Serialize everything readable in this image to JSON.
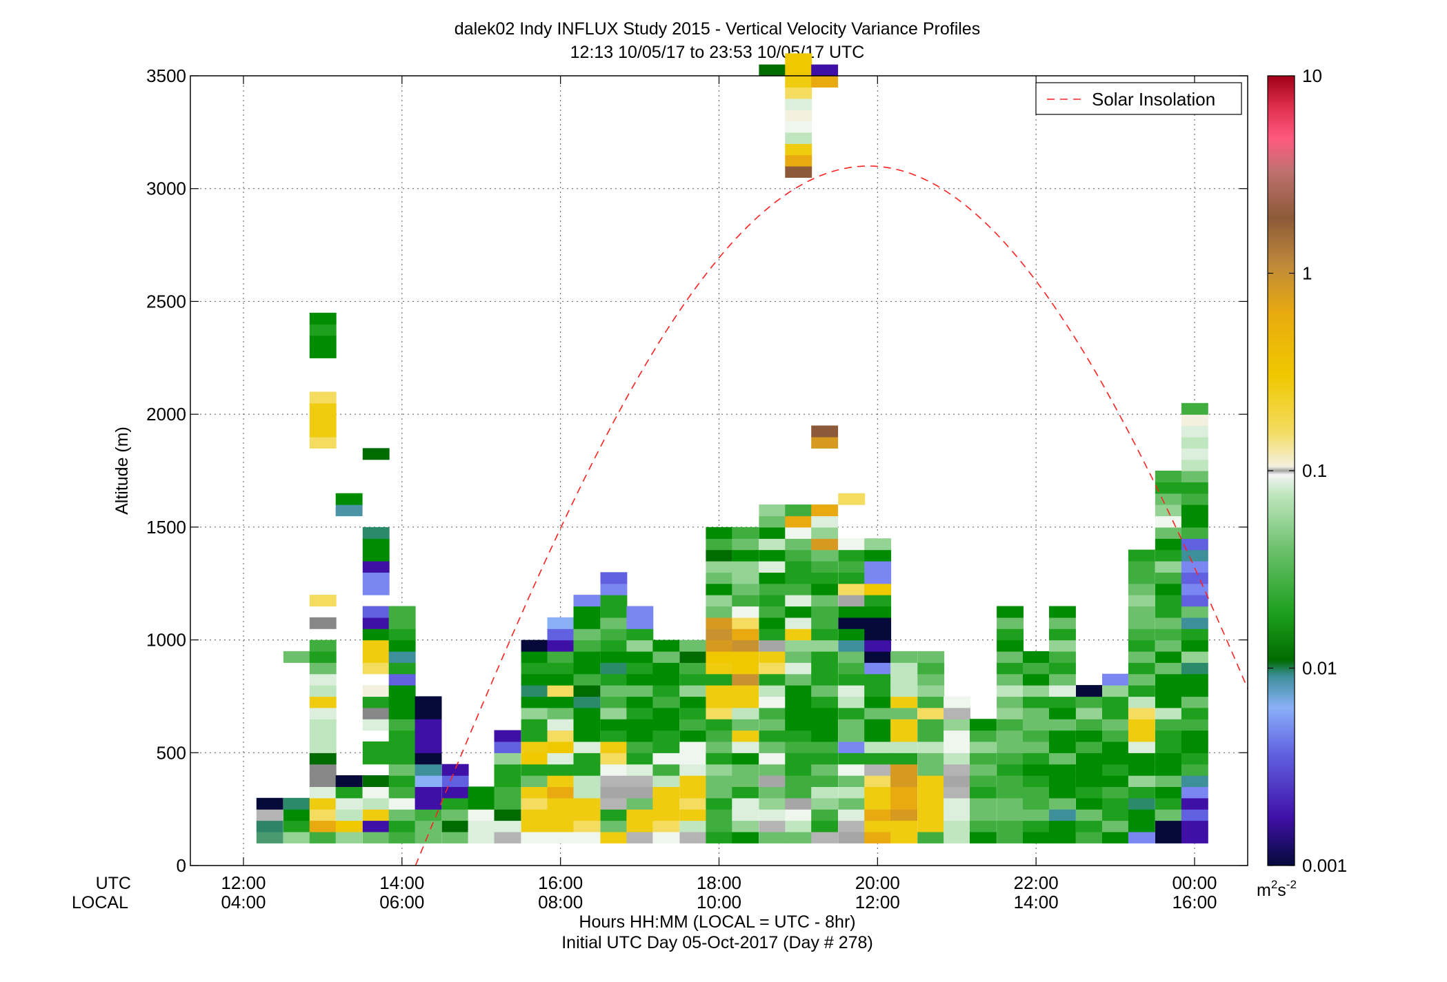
{
  "chart_data": {
    "type": "heatmap",
    "title": "dalek02 Indy INFLUX Study 2015 - Vertical Velocity Variance Profiles",
    "subtitle": "12:13 10/05/17 to 23:53 10/05/17  UTC",
    "ylabel": "Altitude (m)",
    "xlabel": "Hours HH:MM  (LOCAL = UTC - 8hr)",
    "xlabel2": "Initial UTC Day 05-Oct-2017 (Day # 278)",
    "axis_row_labels": [
      "UTC",
      "LOCAL"
    ],
    "x_ticks_utc": [
      "12:00",
      "14:00",
      "16:00",
      "18:00",
      "20:00",
      "22:00",
      "00:00"
    ],
    "x_ticks_local": [
      "04:00",
      "06:00",
      "08:00",
      "10:00",
      "12:00",
      "14:00",
      "16:00"
    ],
    "x_tick_hours": [
      12,
      14,
      16,
      18,
      20,
      22,
      24
    ],
    "xlim": [
      11.33,
      24.67
    ],
    "ylim": [
      0,
      3500
    ],
    "y_ticks": [
      0,
      500,
      1000,
      1500,
      2000,
      2500,
      3000,
      3500
    ],
    "grid": true,
    "legend": {
      "label": "Solar Insolation",
      "placement": "top-right",
      "color": "#ff2020",
      "style": "dashed"
    },
    "colorbar": {
      "scale": "log",
      "range": [
        0.001,
        10
      ],
      "ticks": [
        "10",
        "1",
        "0.1",
        "0.01",
        "0.001"
      ],
      "tick_values": [
        10,
        1,
        0.1,
        0.01,
        0.001
      ],
      "unit_base": "m",
      "unit_exp1": "2",
      "unit_mid": "s",
      "unit_exp2": "-2"
    },
    "solar_insolation_curve": {
      "sunrise_hour": 14.17,
      "sunset_hour": 25.6,
      "peak_hour": 19.88,
      "peak_altitude": 3100
    },
    "gate_bottom_m": 100,
    "gate_height_m": 50,
    "time_step_hours": 0.333,
    "profiles": [
      {
        "t": 12.33,
        "from": 1,
        "v": [
          "t5",
          "t4",
          "g1",
          "K"
        ]
      },
      {
        "t": 12.67,
        "from": 1,
        "v": [
          "G5",
          "G2",
          "G1",
          "T1"
        ]
      },
      {
        "t": 12.67,
        "from": 17,
        "v": [
          "G4"
        ]
      },
      {
        "t": 13.0,
        "from": 1,
        "v": [
          "G3",
          "a",
          "Y2",
          "Y1",
          "W2",
          "P",
          "P",
          "G6",
          "W1",
          "W1",
          "W1",
          "W2",
          "Y1",
          "W1",
          "W2",
          "G4",
          "G2",
          "G3",
          "_",
          "P",
          "_",
          "Y2",
          "_",
          "_",
          "_",
          "_",
          "_",
          "_",
          "_",
          "_",
          "_",
          "_",
          "_",
          "_",
          "_",
          "Y2",
          "Y1",
          "Y1",
          "Y1",
          "Y2",
          "_",
          "_",
          "_",
          "G1",
          "G1",
          "G2",
          "G1"
        ]
      },
      {
        "t": 13.33,
        "from": 1,
        "v": [
          "G5",
          "Y",
          "W1",
          "W2",
          "G2",
          "K"
        ]
      },
      {
        "t": 13.33,
        "from": 30,
        "v": [
          "T3",
          "G1"
        ]
      },
      {
        "t": 13.67,
        "from": 1,
        "v": [
          "G4",
          "U",
          "Y1",
          "W1",
          "W3",
          "G6",
          "_",
          "G2",
          "G2",
          "_",
          "W2",
          "P",
          "G2",
          "W4",
          "_",
          "Y2",
          "Y1",
          "Y1",
          "G1",
          "U",
          "B1",
          "_",
          "B2",
          "B2",
          "U",
          "G1",
          "G1",
          "T1"
        ]
      },
      {
        "t": 13.67,
        "from": 35,
        "v": [
          "G6"
        ]
      },
      {
        "t": 14.0,
        "from": 1,
        "v": [
          "G3",
          "G2",
          "G4",
          "W3",
          "G3",
          "G2",
          "G4",
          "G2",
          "G2",
          "G2",
          "G3",
          "G1",
          "G1",
          "G1",
          "B1",
          "G2",
          "T2",
          "G1",
          "G2",
          "G3",
          "G3"
        ]
      },
      {
        "t": 14.33,
        "from": 1,
        "v": [
          "G4",
          "G4",
          "G3",
          "U",
          "U",
          "B3",
          "T2",
          "K",
          "U",
          "U",
          "U",
          "K",
          "K"
        ]
      },
      {
        "t": 14.67,
        "from": 1,
        "v": [
          "G4",
          "G6",
          "G4",
          "G2",
          "U",
          "B1",
          "U"
        ]
      },
      {
        "t": 15.0,
        "from": 1,
        "v": [
          "W2",
          "W2",
          "W3",
          "G1",
          "G1"
        ]
      },
      {
        "t": 15.33,
        "from": 1,
        "v": [
          "g1",
          "W2",
          "G6",
          "G3",
          "G3",
          "G2",
          "G2",
          "G5",
          "B1",
          "U"
        ]
      },
      {
        "t": 15.67,
        "from": 1,
        "v": [
          "W3",
          "Y1",
          "Y1",
          "Y2",
          "Y1",
          "G4",
          "G2",
          "Y",
          "Y1",
          "G2",
          "G2",
          "G5",
          "G1",
          "T1",
          "G1",
          "G2",
          "G1",
          "K"
        ]
      },
      {
        "t": 16.0,
        "from": 1,
        "v": [
          "W3",
          "Y1",
          "Y1",
          "Y1",
          "a",
          "Y1",
          "G2",
          "W2",
          "Y",
          "Y2",
          "W2",
          "G4",
          "G1",
          "Y2",
          "G1",
          "G2",
          "G3",
          "U",
          "B1",
          "B3"
        ]
      },
      {
        "t": 16.33,
        "from": 1,
        "v": [
          "W3",
          "Y2",
          "Y1",
          "Y1",
          "W1",
          "W1",
          "G2",
          "G2",
          "W2",
          "G1",
          "G1",
          "G1",
          "T1",
          "G6",
          "G3",
          "G1",
          "G1",
          "G3",
          "G4",
          "G1",
          "G1",
          "B2"
        ]
      },
      {
        "t": 16.67,
        "from": 1,
        "v": [
          "Y1",
          "G4",
          "G2",
          "g1",
          "g2",
          "g1",
          "W3",
          "Y2",
          "Y1",
          "G2",
          "G1",
          "G5",
          "G3",
          "G4",
          "G2",
          "T1",
          "G1",
          "G2",
          "G3",
          "G4",
          "G2",
          "G2",
          "B2",
          "B1"
        ]
      },
      {
        "t": 17.0,
        "from": 1,
        "v": [
          "g1",
          "Y1",
          "Y1",
          "G4",
          "g2",
          "g1",
          "W2",
          "G2",
          "G3",
          "G1",
          "G1",
          "G2",
          "G1",
          "G4",
          "G1",
          "G2",
          "G1",
          "G5",
          "G2",
          "B2",
          "B2"
        ]
      },
      {
        "t": 17.33,
        "from": 1,
        "v": [
          "W3",
          "Y2",
          "Y1",
          "Y1",
          "Y1",
          "W1",
          "G3",
          "W3",
          "G2",
          "G2",
          "G1",
          "G1",
          "G3",
          "G2",
          "G1",
          "G1",
          "G4",
          "G1"
        ]
      },
      {
        "t": 17.67,
        "from": 1,
        "v": [
          "g1",
          "W1",
          "Y1",
          "Y2",
          "Y1",
          "Y1",
          "W2",
          "W3",
          "W3",
          "G1",
          "G3",
          "G2",
          "G1",
          "G5",
          "G2",
          "G3",
          "G6",
          "G4"
        ]
      },
      {
        "t": 18.0,
        "from": 1,
        "v": [
          "G2",
          "G3",
          "G3",
          "G2",
          "G4",
          "G4",
          "G5",
          "G2",
          "G4",
          "G3",
          "G2",
          "Y2",
          "Y1",
          "Y1",
          "G2",
          "Y1",
          "Y",
          "a2",
          "a3",
          "a2",
          "G4",
          "G5",
          "G1",
          "G4",
          "G5",
          "G6",
          "G3",
          "G1"
        ]
      },
      {
        "t": 18.33,
        "from": 1,
        "v": [
          "G1",
          "G5",
          "W2",
          "W2",
          "G2",
          "G4",
          "G4",
          "G1",
          "W2",
          "Y1",
          "G4",
          "W1",
          "Y1",
          "Y1",
          "a3",
          "Y",
          "Y",
          "a3",
          "a",
          "Y2",
          "W3",
          "G3",
          "G4",
          "G5",
          "G5",
          "G4"
        ]
      },
      {
        "t": 18.33,
        "from": 26,
        "v": [
          "G1",
          "G4",
          "G3"
        ]
      },
      {
        "t": 18.67,
        "from": 1,
        "v": [
          "G4",
          "g1",
          "W2",
          "G5",
          "G4",
          "g2",
          "G4",
          "W3",
          "G4",
          "G2",
          "G4",
          "G3",
          "W3",
          "W1",
          "G2",
          "Y2",
          "Y1",
          "g2",
          "G2",
          "G1",
          "G3",
          "G2",
          "G3",
          "G1",
          "W2",
          "G1",
          "W1",
          "G1",
          "G4",
          "G5",
          "_",
          "_",
          "_",
          "_",
          "_",
          "_",
          "_",
          "_",
          "_",
          "_",
          "_",
          "_",
          "_",
          "_",
          "_",
          "_",
          "_",
          "_",
          "_",
          "_",
          "_",
          "_",
          "_",
          "_",
          "_",
          "_",
          "_",
          "_",
          "_",
          "_",
          "_",
          "_",
          "_",
          "_",
          "_",
          "_",
          "_",
          "_",
          "G6"
        ]
      },
      {
        "t": 19.0,
        "from": 1,
        "v": [
          "G4",
          "W1",
          "W3",
          "g2",
          "G3",
          "G3",
          "G2",
          "G2",
          "G3",
          "G2",
          "G1",
          "G1",
          "G1",
          "G1",
          "G4",
          "W2",
          "G4",
          "G5",
          "Y1",
          "W2",
          "G1",
          "W2",
          "G3",
          "G2",
          "G2",
          "G3",
          "G4",
          "W3",
          "a",
          "G3",
          "_",
          "_",
          "_",
          "_",
          "_",
          "_",
          "_",
          "_",
          "_",
          "_",
          "_",
          "_",
          "_",
          "_",
          "_",
          "_",
          "_",
          "_",
          "_",
          "_",
          "_",
          "_",
          "_",
          "_",
          "_",
          "_",
          "_",
          "_",
          "_",
          "br",
          "a",
          "Y1",
          "W1",
          "W3",
          "W4",
          "W2",
          "Y2",
          "Y1",
          "Y",
          "Y"
        ]
      },
      {
        "t": 19.33,
        "from": 1,
        "v": [
          "g1",
          "G2",
          "G3",
          "G5",
          "W1",
          "G3",
          "G4",
          "G2",
          "G3",
          "G1",
          "G1",
          "G1",
          "G2",
          "G4",
          "G2",
          "G2",
          "G2",
          "G5",
          "G2",
          "G3",
          "G3",
          "G4",
          "G1",
          "G2",
          "G3",
          "G4",
          "a2",
          "G5",
          "W2",
          "a",
          "_",
          "_",
          "_",
          "_",
          "_",
          "a2",
          "br",
          "_",
          "_",
          "_",
          "_",
          "_",
          "_",
          "_",
          "_",
          "_",
          "_",
          "_",
          "_",
          "_",
          "_",
          "_",
          "_",
          "_",
          "_",
          "_",
          "_",
          "_",
          "_",
          "_",
          "_",
          "_",
          "_",
          "_",
          "_",
          "_",
          "_",
          "a",
          "U"
        ]
      },
      {
        "t": 19.67,
        "from": 1,
        "v": [
          "g2",
          "g1",
          "W2",
          "G4",
          "W1",
          "G4",
          "W3",
          "G2",
          "B2",
          "G4",
          "G4",
          "G2",
          "W1",
          "W2",
          "G2",
          "G3",
          "G4",
          "T2",
          "G1",
          "K",
          "G1",
          "g2",
          "Y2",
          "G2",
          "G3",
          "G2",
          "W3",
          "_",
          "_",
          "_",
          "Y2"
        ]
      },
      {
        "t": 20.0,
        "from": 1,
        "v": [
          "a",
          "Y1",
          "a",
          "Y1",
          "Y1",
          "Y2",
          "g1",
          "G2",
          "W1",
          "G1",
          "G1",
          "G4",
          "G1",
          "G2",
          "G2",
          "B2",
          "K",
          "U",
          "K",
          "K",
          "G1",
          "G2",
          "Y",
          "B2",
          "B2",
          "G1",
          "G5"
        ]
      },
      {
        "t": 20.33,
        "from": 1,
        "v": [
          "Y1",
          "Y1",
          "a2",
          "a",
          "a",
          "a2",
          "a2",
          "G2",
          "W1",
          "Y1",
          "Y1",
          "G4",
          "Y1",
          "W1",
          "W1",
          "W1",
          "G4"
        ]
      },
      {
        "t": 20.67,
        "from": 1,
        "v": [
          "G3",
          "Y1",
          "Y1",
          "Y1",
          "Y1",
          "Y1",
          "G4",
          "G4",
          "W1",
          "G3",
          "G3",
          "Y2",
          "G3",
          "G5",
          "G4",
          "G3",
          "G4"
        ]
      },
      {
        "t": 21.0,
        "from": 1,
        "v": [
          "W1",
          "W1",
          "W2",
          "W2",
          "g1",
          "g2",
          "g1",
          "W1",
          "W3",
          "W3",
          "G5",
          "g1",
          "W3"
        ]
      },
      {
        "t": 21.33,
        "from": 1,
        "v": [
          "G1",
          "G3",
          "G4",
          "G4",
          "G2",
          "G3",
          "G4",
          "G3",
          "G5",
          "G3",
          "G1"
        ]
      },
      {
        "t": 21.67,
        "from": 1,
        "v": [
          "G3",
          "G3",
          "G4",
          "G4",
          "G3",
          "G3",
          "G2",
          "G3",
          "G4",
          "G4",
          "G3",
          "G5",
          "G4",
          "W1",
          "G4",
          "G2",
          "G4",
          "G1",
          "G2",
          "G4",
          "G1"
        ]
      },
      {
        "t": 22.0,
        "from": 1,
        "v": [
          "G1",
          "G2",
          "G4",
          "G3",
          "G3",
          "G2",
          "G1",
          "G2",
          "G4",
          "G3",
          "G4",
          "G4",
          "G2",
          "G5",
          "G1",
          "G3",
          "G1"
        ]
      },
      {
        "t": 22.33,
        "from": 1,
        "v": [
          "G1",
          "G1",
          "T2",
          "G4",
          "G1",
          "G1",
          "G1",
          "G4",
          "G1",
          "G1",
          "G4",
          "G1",
          "G2",
          "W2",
          "G4",
          "G2",
          "G3",
          "G5",
          "G2",
          "G4",
          "G1"
        ]
      },
      {
        "t": 22.67,
        "from": 1,
        "v": [
          "G3",
          "G2",
          "G4",
          "G1",
          "G2",
          "G1",
          "G1",
          "G1",
          "G3",
          "G1",
          "G3",
          "G5",
          "G3",
          "K"
        ]
      },
      {
        "t": 23.0,
        "from": 1,
        "v": [
          "G1",
          "G4",
          "G2",
          "G2",
          "G3",
          "G1",
          "G2",
          "G1",
          "G1",
          "G3",
          "G4",
          "G2",
          "G2",
          "G5",
          "B2"
        ]
      },
      {
        "t": 23.33,
        "from": 1,
        "v": [
          "B2",
          "G1",
          "G1",
          "T1",
          "G2",
          "G5",
          "G1",
          "G1",
          "W2",
          "Y1",
          "Y1",
          "Y2",
          "W1",
          "G2",
          "G4",
          "G2",
          "G4",
          "G2",
          "G3",
          "G4",
          "G4",
          "G5",
          "G4",
          "G3",
          "G3",
          "G2"
        ]
      },
      {
        "t": 23.67,
        "from": 1,
        "v": [
          "K",
          "K",
          "G4",
          "G2",
          "G1",
          "G4",
          "G1",
          "G1",
          "G2",
          "G2",
          "G3",
          "W1",
          "G1",
          "G1",
          "G1",
          "G4",
          "G1",
          "G4",
          "G3",
          "G4",
          "G2",
          "G2",
          "G1",
          "G3",
          "G5",
          "G2",
          "G1",
          "G4",
          "W3",
          "G5",
          "G4",
          "G2",
          "G3"
        ]
      },
      {
        "t": 24.0,
        "from": 1,
        "v": [
          "U",
          "U",
          "B1",
          "U",
          "B2",
          "T2",
          "G3",
          "G2",
          "G1",
          "G1",
          "G3",
          "G2",
          "G4",
          "G1",
          "G1",
          "T1",
          "G5",
          "G1",
          "G2",
          "T2",
          "G4",
          "B1",
          "B2",
          "B1",
          "B2",
          "T2",
          "B1",
          "G3",
          "G1",
          "G1",
          "G3",
          "G2",
          "G4",
          "W1",
          "W2",
          "W1",
          "W2",
          "W4",
          "G3"
        ]
      }
    ],
    "colors": {
      "K": "#050a3a",
      "U": "#3f10a6",
      "B1": "#6060e0",
      "B2": "#7a86f2",
      "B3": "#8ab0f8",
      "T1": "#2b8a6a",
      "T2": "#3d8f9a",
      "T3": "#4a94a6",
      "t4": "#2f8467",
      "t5": "#4a9a70",
      "G6": "#006b00",
      "G1": "#008c00",
      "G2": "#1ea01e",
      "G3": "#3fae3f",
      "G4": "#6cc06c",
      "G5": "#95d395",
      "W1": "#bfe6bf",
      "W2": "#dcefdc",
      "W3": "#eef6ee",
      "W4": "#f4f0e0",
      "g1": "#b4b4b4",
      "g2": "#a6a6a6",
      "Y": "#f0c800",
      "Y1": "#f0cc10",
      "Y2": "#f3dc60",
      "a": "#e8aa10",
      "a2": "#d79a20",
      "a3": "#c89230",
      "br": "#8c5a38"
    }
  }
}
